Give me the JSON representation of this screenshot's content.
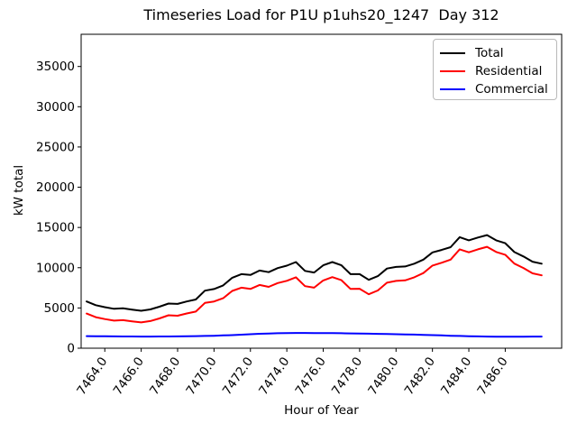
{
  "chart_data": {
    "type": "line",
    "title": "Timeseries Load for P1U p1uhs20_1247  Day 312",
    "xlabel": "Hour of Year",
    "ylabel": "kW total",
    "xlim": [
      7462.7,
      7489.1
    ],
    "ylim": [
      0,
      39000
    ],
    "grid": false,
    "legend_position": "upper right",
    "xticks": [
      7464,
      7466,
      7468,
      7470,
      7472,
      7474,
      7476,
      7478,
      7480,
      7482,
      7484,
      7486
    ],
    "xtick_labels": [
      "7464.0",
      "7466.0",
      "7468.0",
      "7470.0",
      "7472.0",
      "7474.0",
      "7476.0",
      "7478.0",
      "7480.0",
      "7482.0",
      "7484.0",
      "7486.0"
    ],
    "yticks": [
      0,
      5000,
      10000,
      15000,
      20000,
      25000,
      30000,
      35000
    ],
    "ytick_labels": [
      "0",
      "5000",
      "10000",
      "15000",
      "20000",
      "25000",
      "30000",
      "35000"
    ],
    "x": [
      7463.0,
      7463.5,
      7464.0,
      7464.5,
      7465.0,
      7465.5,
      7466.0,
      7466.5,
      7467.0,
      7467.5,
      7468.0,
      7468.5,
      7469.0,
      7469.5,
      7470.0,
      7470.5,
      7471.0,
      7471.5,
      7472.0,
      7472.5,
      7473.0,
      7473.5,
      7474.0,
      7474.5,
      7475.0,
      7475.5,
      7476.0,
      7476.5,
      7477.0,
      7477.5,
      7478.0,
      7478.5,
      7479.0,
      7479.5,
      7480.0,
      7480.5,
      7481.0,
      7481.5,
      7482.0,
      7482.5,
      7483.0,
      7483.5,
      7484.0,
      7484.5,
      7485.0,
      7485.5,
      7486.0,
      7486.5,
      7487.0,
      7487.5,
      7488.0
    ],
    "series": [
      {
        "name": "Total",
        "color": "#000000",
        "values": [
          5800,
          5350,
          5100,
          4900,
          4950,
          4800,
          4650,
          4820,
          5150,
          5550,
          5500,
          5800,
          6050,
          7150,
          7350,
          7800,
          8750,
          9200,
          9100,
          9650,
          9450,
          9950,
          10250,
          10700,
          9600,
          9400,
          10300,
          10700,
          10300,
          9200,
          9200,
          8500,
          8950,
          9900,
          10100,
          10150,
          10500,
          11000,
          11900,
          12200,
          12550,
          13800,
          13400,
          13750,
          14050,
          13400,
          13050,
          11950,
          11400,
          10750,
          10500
        ]
      },
      {
        "name": "Residential",
        "color": "#ff0000",
        "values": [
          4300,
          3860,
          3620,
          3430,
          3490,
          3345,
          3200,
          3370,
          3695,
          4090,
          4030,
          4320,
          4550,
          5630,
          5800,
          6210,
          7120,
          7520,
          7360,
          7860,
          7620,
          8090,
          8370,
          8810,
          7710,
          7515,
          8420,
          8830,
          8445,
          7360,
          7380,
          6700,
          7170,
          8140,
          8360,
          8430,
          8810,
          9340,
          10270,
          10610,
          11000,
          12280,
          11910,
          12280,
          12600,
          11960,
          11615,
          10515,
          9960,
          9305,
          9050
        ]
      },
      {
        "name": "Commercial",
        "color": "#0000ff",
        "values": [
          1500,
          1490,
          1480,
          1470,
          1460,
          1455,
          1450,
          1450,
          1455,
          1460,
          1470,
          1480,
          1500,
          1520,
          1550,
          1590,
          1630,
          1680,
          1740,
          1790,
          1830,
          1860,
          1880,
          1890,
          1890,
          1885,
          1880,
          1870,
          1855,
          1840,
          1820,
          1800,
          1780,
          1760,
          1740,
          1720,
          1690,
          1660,
          1630,
          1590,
          1550,
          1520,
          1490,
          1470,
          1450,
          1440,
          1435,
          1435,
          1440,
          1445,
          1450
        ]
      }
    ]
  }
}
